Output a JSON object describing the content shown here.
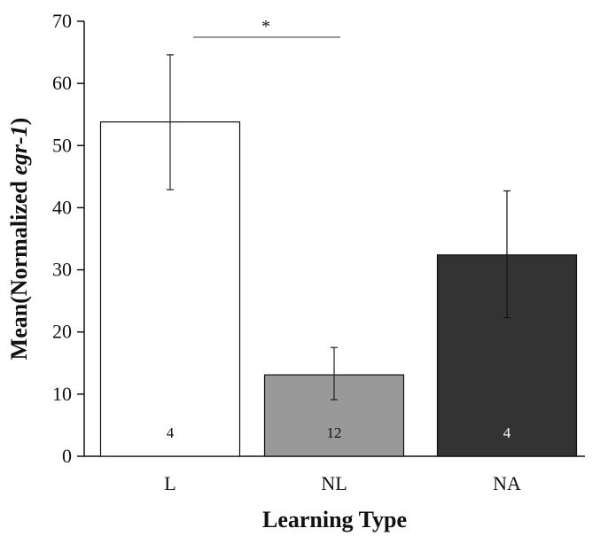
{
  "chart_data": {
    "type": "bar",
    "categories": [
      "L",
      "NL",
      "NA"
    ],
    "values": [
      53.8,
      13.1,
      32.4
    ],
    "errors": [
      {
        "low": 42.9,
        "high": 64.6
      },
      {
        "low": 9.1,
        "high": 17.5
      },
      {
        "low": 22.3,
        "high": 42.7
      }
    ],
    "n_labels": [
      "4",
      "12",
      "4"
    ],
    "colors": [
      "#ffffff",
      "#999999",
      "#333333"
    ],
    "n_label_colors": [
      "#111111",
      "#111111",
      "#ffffff"
    ],
    "xlabel": "Learning Type",
    "ylabel_prefix": "Mean(Normalized ",
    "ylabel_gene": "egr-1",
    "ylabel_suffix": ")",
    "ylim": [
      0,
      70
    ],
    "yticks": [
      "0",
      "10",
      "20",
      "30",
      "40",
      "50",
      "60",
      "70"
    ],
    "significance": {
      "from": "L",
      "to": "NL",
      "label": "*"
    },
    "grid": false
  }
}
